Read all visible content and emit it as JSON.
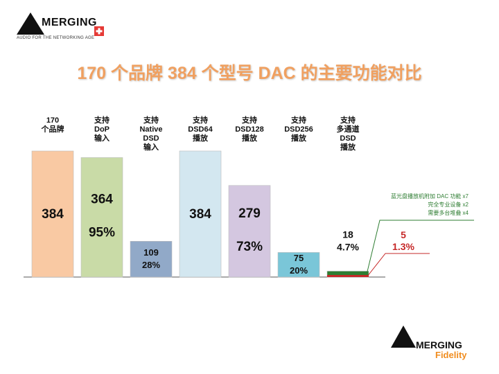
{
  "header": {
    "logo_text": "MERGING",
    "logo_tagline": "AUDIO FOR THE NETWORKING AGE"
  },
  "footer_logo": {
    "line1": "MERGING",
    "line2": "Fidelity"
  },
  "chart_data": {
    "type": "bar",
    "title": "170 个品牌 384 个型号 DAC 的主要功能对比",
    "categories": [
      "170\n个品牌",
      "支持\nDoP\n输入",
      "支持\nNative\nDSD\n输入",
      "支持\nDSD64\n播放",
      "支持\nDSD128\n播放",
      "支持\nDSD256\n播放",
      "支持\n多通道\nDSD\n播放"
    ],
    "values": [
      384,
      364,
      109,
      384,
      279,
      75,
      18
    ],
    "percent_labels": [
      "",
      "95%",
      "28%",
      "",
      "73%",
      "20%",
      "4.7%"
    ],
    "colors": [
      "#f9c9a3",
      "#c9dba7",
      "#91a9c8",
      "#d3e7f0",
      "#d4c7e0",
      "#7ac6d8",
      "#2e7d32"
    ],
    "ylim": [
      0,
      384
    ],
    "grid": false,
    "subset": {
      "value": 5,
      "percent_label": "1.3%",
      "color": "#c62828"
    },
    "annotations": [
      "蓝光盘播放机附加 DAC 功能 x7",
      "完全专业设备 x2",
      "需要多台堆叠 x4"
    ]
  }
}
